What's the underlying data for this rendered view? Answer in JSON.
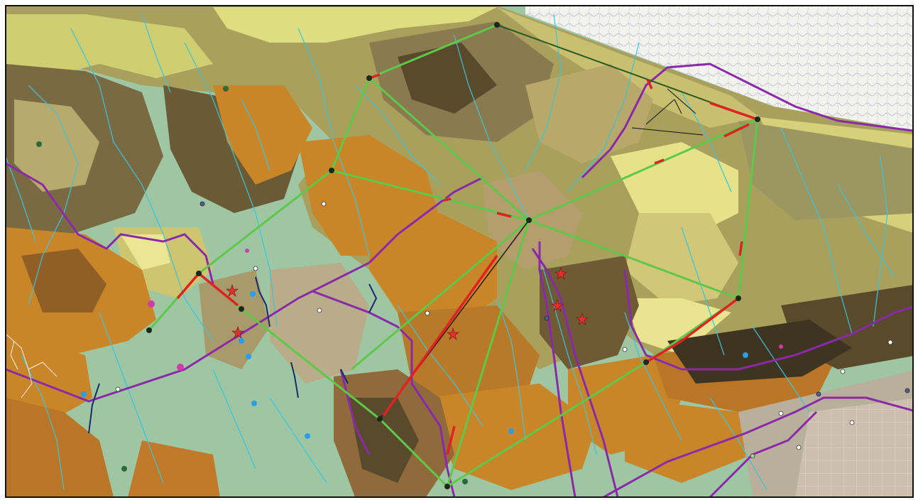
{
  "map": {
    "colors": {
      "frame": "#111111",
      "valley_fill": "#9ec6a3",
      "terrain_light": "#dede80",
      "terrain_olive": "#a9a05d",
      "terrain_tan": "#b89f6f",
      "terrain_dark": "#5a4a2c",
      "terrain_orange": "#c98628",
      "terrain_brown": "#8f5f26",
      "stream": "#3cc4dc",
      "boundary": "#8a2aa8",
      "network_line": "#5fc84a",
      "network_alert": "#e02222",
      "star_marker": "#e03030",
      "dark_drainage": "#1a2a6a",
      "magenta_point": "#d43aa8",
      "cyan_point": "#2a9ee8"
    }
  }
}
